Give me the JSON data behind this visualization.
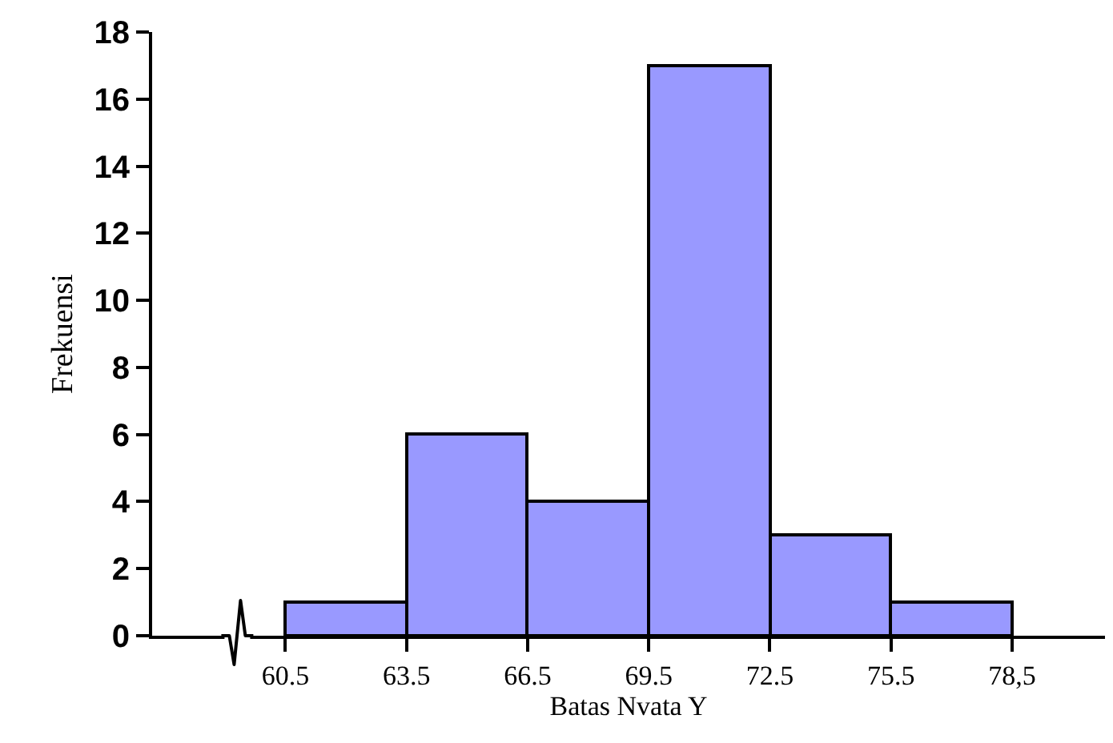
{
  "chart_data": {
    "type": "histogram",
    "xlabel": "Batas Nvata Y",
    "ylabel": "Frekuensi",
    "bins": [
      60.5,
      63.5,
      66.5,
      69.5,
      72.5,
      75.5,
      78.5
    ],
    "values": [
      1,
      6,
      4,
      17,
      3,
      1
    ],
    "color": "#9999ff",
    "xlim": [
      57.2,
      80.8
    ],
    "xticks": [
      60.5,
      63.5,
      66.5,
      69.5,
      72.5,
      75.5,
      {
        "value": 78.5,
        "label": "78,5"
      }
    ],
    "ylim": [
      0,
      18
    ],
    "yticks": [
      0,
      2,
      4,
      6,
      8,
      10,
      12,
      14,
      16,
      18
    ]
  }
}
